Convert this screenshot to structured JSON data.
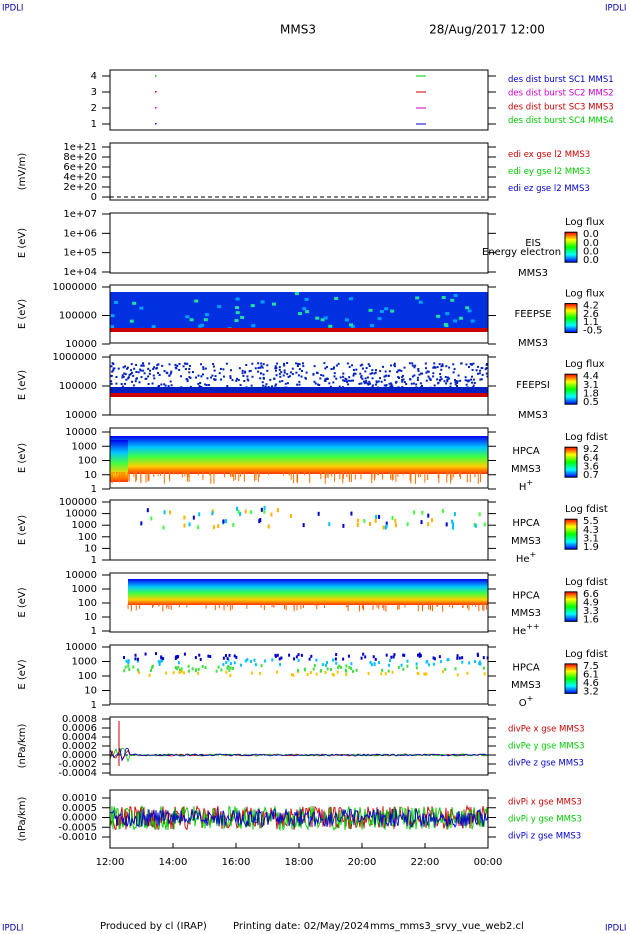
{
  "header": {
    "left": "IPDLI",
    "right": "IPDLI",
    "title": "MMS3",
    "date": "28/Aug/2017 12:00"
  },
  "xticks": [
    "12:00",
    "14:00",
    "16:00",
    "18:00",
    "20:00",
    "22:00",
    "00:00"
  ],
  "panels": [
    {
      "yticks": [
        "4",
        "3",
        "2",
        "1"
      ],
      "legend": [
        {
          "text": "des dist burst SC1 MMS1",
          "color": "#0000cc"
        },
        {
          "text": "des dist burst SC2 MMS2",
          "color": "#cc00cc"
        },
        {
          "text": "des dist burst SC3 MMS3",
          "color": "#cc0000"
        },
        {
          "text": "des dist burst SC4 MMS4",
          "color": "#00cc00"
        }
      ]
    },
    {
      "ylabel": "(mV/m)",
      "yticks": [
        "1e+21",
        "8e+20",
        "6e+20",
        "4e+20",
        "2e+20",
        "0"
      ],
      "legend": [
        {
          "text": "edi ex gse l2 MMS3",
          "color": "#cc0000"
        },
        {
          "text": "edi ey gse l2 MMS3",
          "color": "#00cc00"
        },
        {
          "text": "edi ez gse l2 MMS3",
          "color": "#0000cc"
        }
      ]
    },
    {
      "ylabel": "E (eV)",
      "yticks": [
        "1e+07",
        "1e+06",
        "1e+05",
        "1e+04"
      ],
      "side": [
        {
          "text": "EIS"
        },
        {
          "text": "MMS3"
        }
      ],
      "overlay": "Energy electron to",
      "colorbar": {
        "title": "Log flux",
        "labels": [
          "0.0",
          "0.0",
          "0.0",
          "0.0"
        ]
      }
    },
    {
      "ylabel": "E (eV)",
      "yticks": [
        "1000000",
        "100000",
        "10000"
      ],
      "side": [
        {
          "text": "FEEPSE"
        },
        {
          "text": "MMS3"
        }
      ],
      "colorbar": {
        "title": "Log flux",
        "labels": [
          "4.2",
          "2.6",
          "1.1",
          "-0.5"
        ]
      }
    },
    {
      "ylabel": "E (eV)",
      "yticks": [
        "1000000",
        "100000",
        "10000"
      ],
      "side": [
        {
          "text": "FEEPSI"
        },
        {
          "text": "MMS3"
        }
      ],
      "colorbar": {
        "title": "Log flux",
        "labels": [
          "4.4",
          "3.1",
          "1.8",
          "0.5"
        ]
      }
    },
    {
      "ylabel": "E (eV)",
      "yticks": [
        "10000",
        "1000",
        "100",
        "10",
        "1"
      ],
      "side": [
        {
          "text": "HPCA"
        },
        {
          "text": "MMS3"
        },
        {
          "text": "H",
          "sup": "+"
        }
      ],
      "colorbar": {
        "title": "Log fdist",
        "labels": [
          "9.2",
          "6.4",
          "3.6",
          "0.7"
        ]
      }
    },
    {
      "ylabel": "E (eV)",
      "yticks": [
        "100000",
        "10000",
        "1000",
        "100",
        "10",
        "1"
      ],
      "side": [
        {
          "text": "HPCA"
        },
        {
          "text": "MMS3"
        },
        {
          "text": "He",
          "sup": "+"
        }
      ],
      "colorbar": {
        "title": "Log fdist",
        "labels": [
          "5.5",
          "4.3",
          "3.1",
          "1.9"
        ]
      }
    },
    {
      "ylabel": "E (eV)",
      "yticks": [
        "10000",
        "1000",
        "100",
        "10",
        "1"
      ],
      "side": [
        {
          "text": "HPCA"
        },
        {
          "text": "MMS3"
        },
        {
          "text": "He",
          "sup": "++"
        }
      ],
      "colorbar": {
        "title": "Log fdist",
        "labels": [
          "6.6",
          "4.9",
          "3.3",
          "1.6"
        ]
      }
    },
    {
      "ylabel": "E (eV)",
      "yticks": [
        "10000",
        "1000",
        "100",
        "10",
        "1"
      ],
      "side": [
        {
          "text": "HPCA"
        },
        {
          "text": "MMS3"
        },
        {
          "text": "O",
          "sup": "+"
        }
      ],
      "colorbar": {
        "title": "Log fdist",
        "labels": [
          "7.5",
          "6.1",
          "4.6",
          "3.2"
        ]
      }
    },
    {
      "ylabel": "(nPa/km)",
      "yticks": [
        "0.0008",
        "0.0006",
        "0.0004",
        "0.0002",
        "0.0000",
        "-0.0002",
        "-0.0004"
      ],
      "legend": [
        {
          "text": "divPe x gse MMS3",
          "color": "#cc0000"
        },
        {
          "text": "divPe y gse MMS3",
          "color": "#00cc00"
        },
        {
          "text": "divPe z gse MMS3",
          "color": "#0000cc"
        }
      ]
    },
    {
      "ylabel": "(nPa/km)",
      "yticks": [
        "0.0010",
        "0.0005",
        "0.0000",
        "-0.0005",
        "-0.0010"
      ],
      "legend": [
        {
          "text": "divPi x gse MMS3",
          "color": "#cc0000"
        },
        {
          "text": "divPi y gse MMS3",
          "color": "#00cc00"
        },
        {
          "text": "divPi z gse MMS3",
          "color": "#0000cc"
        }
      ]
    }
  ],
  "footer": {
    "producer": "Produced by cl (IRAP)",
    "printed": "Printing date: 02/May/2024",
    "file": "mms_mms3_srvy_vue_web2.cl"
  }
}
